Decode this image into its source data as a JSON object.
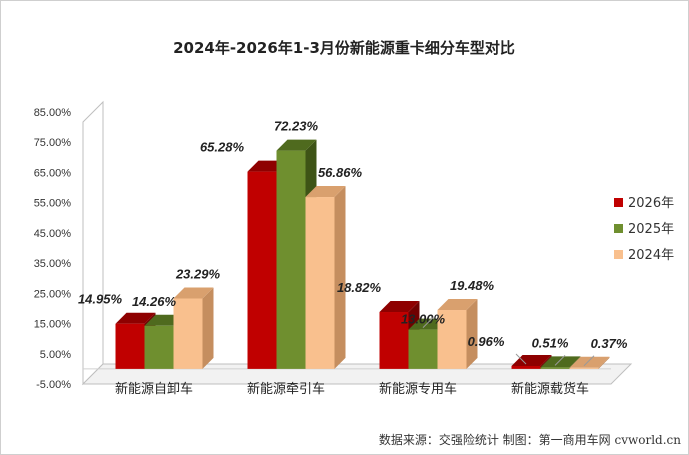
{
  "title": "2024年-2026年1-3月份新能源重卡细分车型对比",
  "source": "数据来源：交强险统计  制图：第一商用车网 cvworld.cn",
  "colors": {
    "2026年": {
      "front": "#c00000",
      "top": "#8e0000",
      "side": "#700000"
    },
    "2025年": {
      "front": "#6f8f2f",
      "top": "#4f6a1e",
      "side": "#3e5416"
    },
    "2024年": {
      "front": "#f9c08e",
      "top": "#d9a06e",
      "side": "#c58e5f"
    }
  },
  "chart_data": {
    "type": "bar",
    "title": "2024年-2026年1-3月份新能源重卡细分车型对比",
    "categories": [
      "新能源自卸车",
      "新能源牵引车",
      "新能源专用车",
      "新能源载货车"
    ],
    "series": [
      {
        "name": "2026年",
        "values": [
          14.95,
          65.28,
          18.82,
          0.96
        ],
        "labels": [
          "14.95%",
          "65.28%",
          "18.82%",
          "0.96%"
        ]
      },
      {
        "name": "2025年",
        "values": [
          14.26,
          72.23,
          13.0,
          0.51
        ],
        "labels": [
          "14.26%",
          "72.23%",
          "13.00%",
          "0.51%"
        ]
      },
      {
        "name": "2024年",
        "values": [
          23.29,
          56.86,
          19.48,
          0.37
        ],
        "labels": [
          "23.29%",
          "56.86%",
          "19.48%",
          "0.37%"
        ]
      }
    ],
    "ylim": [
      -5,
      85
    ],
    "yticks": [
      "-5.00%",
      "5.00%",
      "15.00%",
      "25.00%",
      "35.00%",
      "45.00%",
      "55.00%",
      "65.00%",
      "75.00%",
      "85.00%"
    ],
    "ytick_values": [
      -5,
      5,
      15,
      25,
      35,
      45,
      55,
      65,
      75,
      85
    ],
    "legend": [
      "2026年",
      "2025年",
      "2024年"
    ],
    "legend_position": "right",
    "gridlines": false,
    "style": "3d-clustered-column"
  }
}
